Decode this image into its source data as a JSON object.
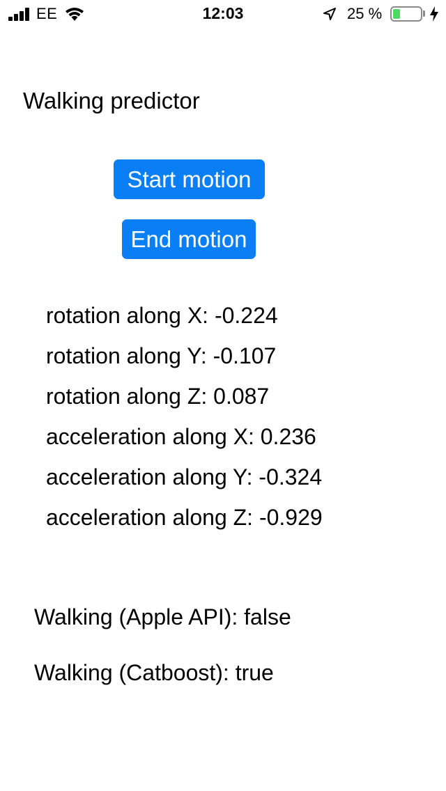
{
  "status_bar": {
    "carrier": "EE",
    "time": "12:03",
    "battery_percent": "25 %",
    "battery_level": 0.25,
    "battery_color": "#4cd964",
    "icons": [
      "signal-icon",
      "wifi-icon",
      "location-icon",
      "battery-icon",
      "charging-icon"
    ]
  },
  "app": {
    "title": "Walking predictor",
    "start_button": "Start motion",
    "end_button": "End motion",
    "accent_color": "#0a7ff5"
  },
  "readings": [
    {
      "text": "rotation along X: -0.224"
    },
    {
      "text": "rotation along Y: -0.107"
    },
    {
      "text": "rotation along Z: 0.087"
    },
    {
      "text": "acceleration along X: 0.236"
    },
    {
      "text": "acceleration along Y: -0.324"
    },
    {
      "text": "acceleration along Z: -0.929"
    }
  ],
  "results": {
    "apple_api": "Walking (Apple API): false",
    "catboost": "Walking (Catboost): true"
  }
}
